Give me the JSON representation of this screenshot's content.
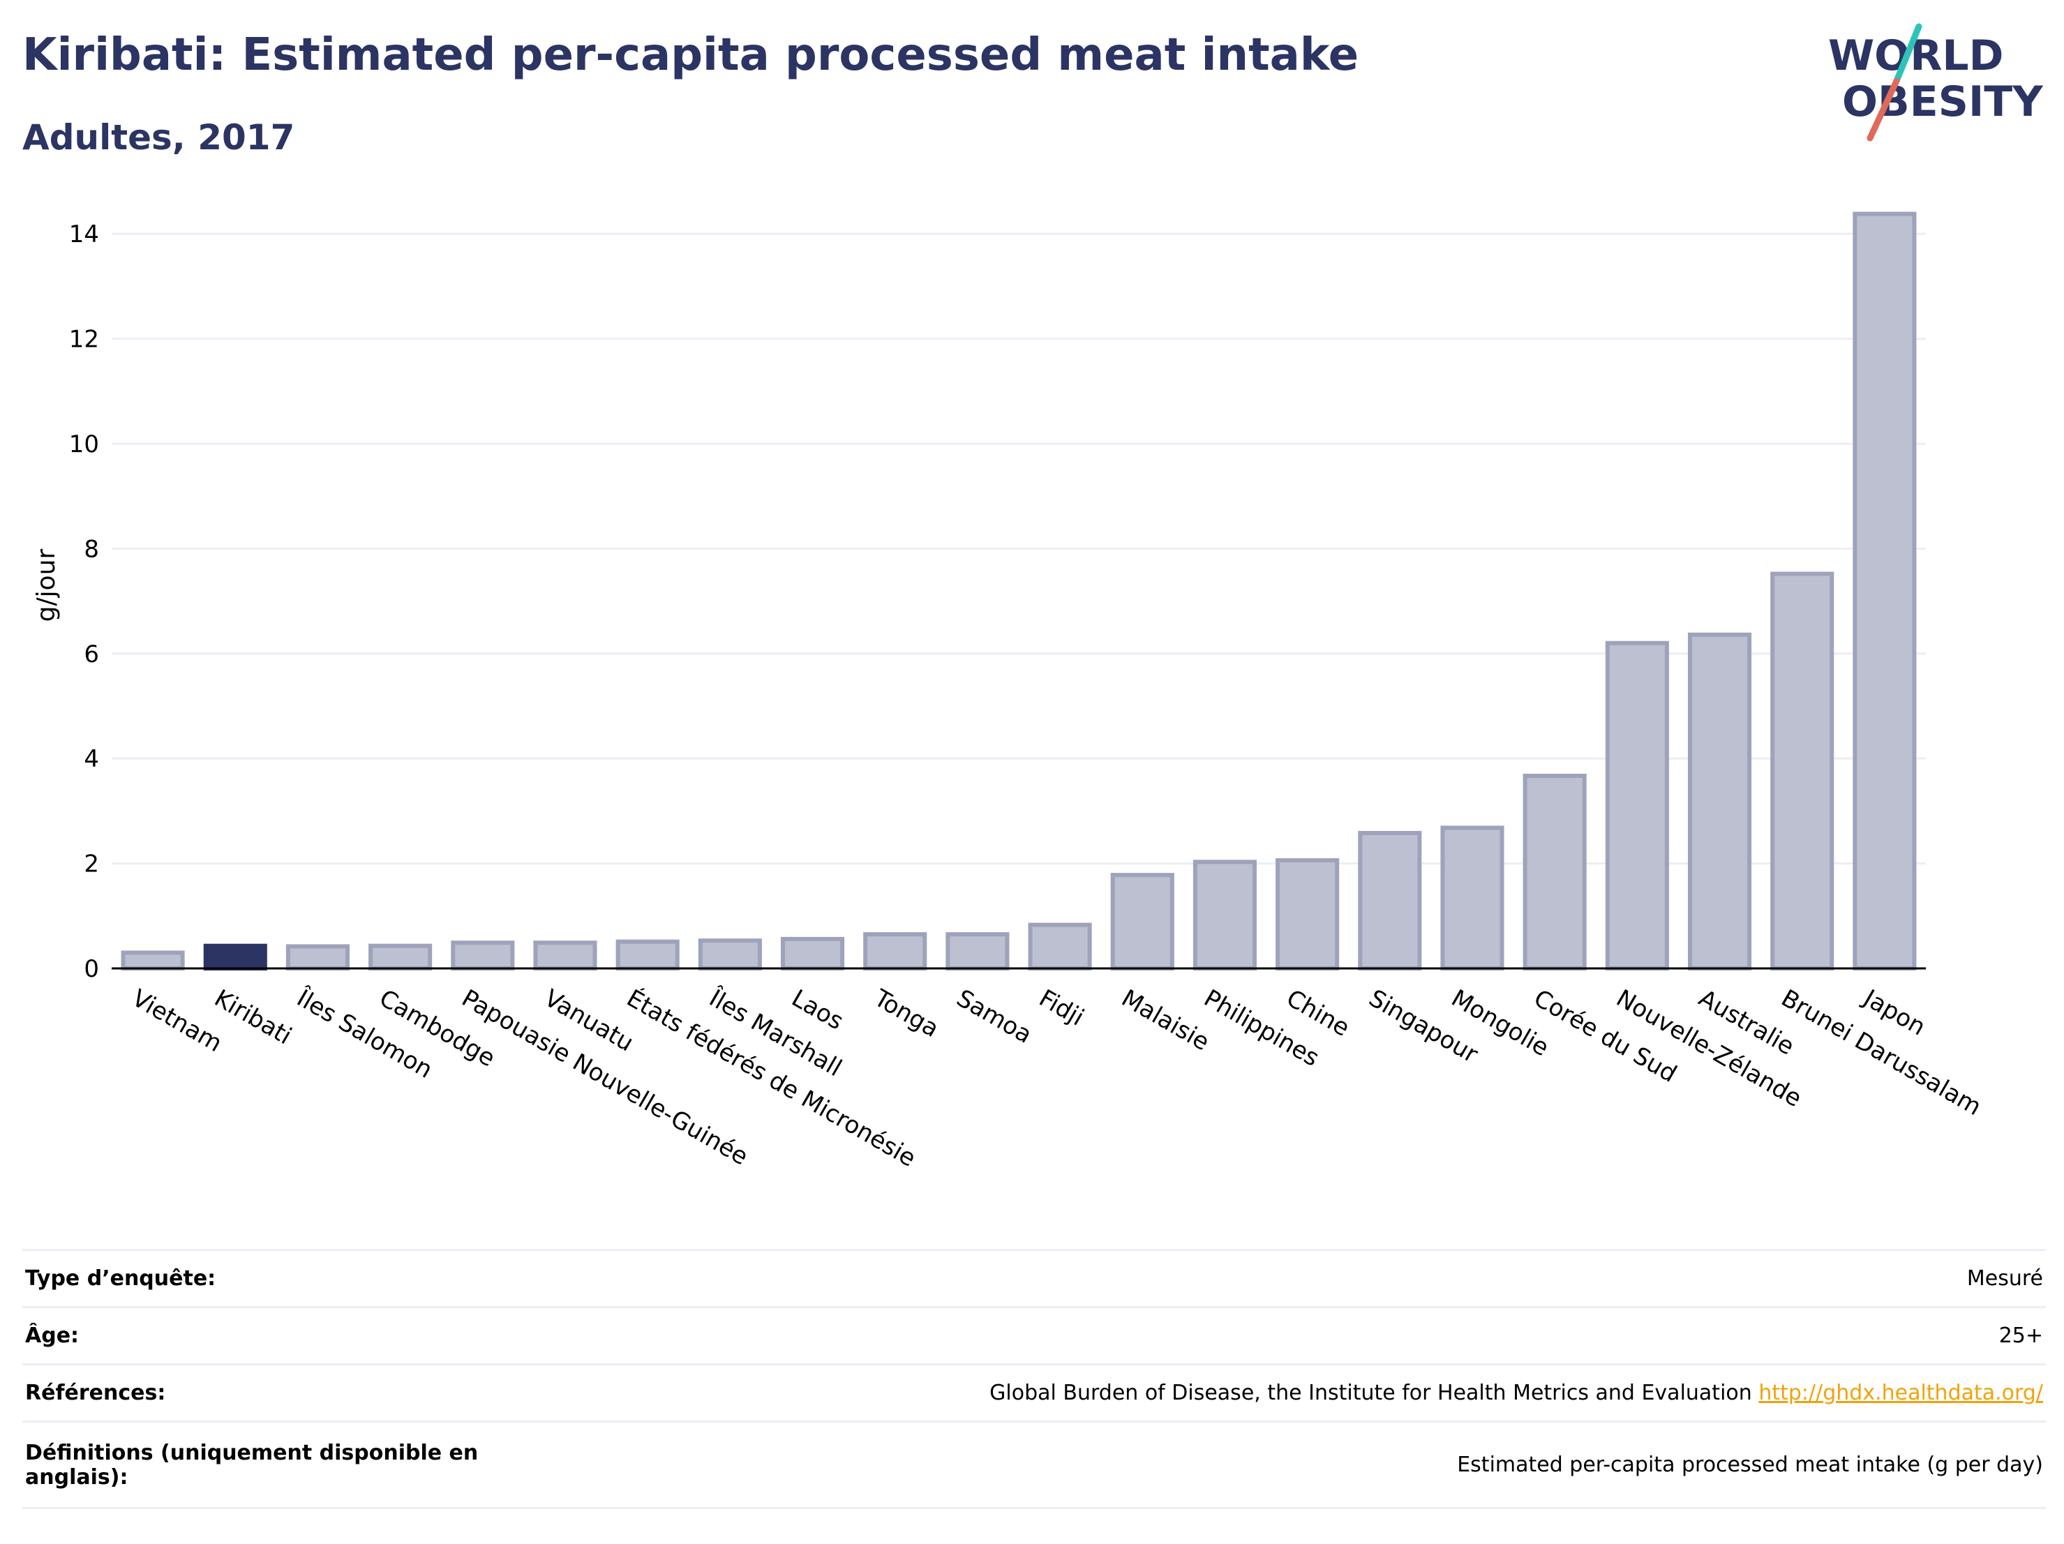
{
  "title": "Kiribati: Estimated per-capita processed meat intake",
  "subtitle": "Adultes, 2017",
  "logo": {
    "line1": "WORLD",
    "line2": "OBESITY",
    "slash_colors": [
      "#2cc4b8",
      "#e06a5a"
    ]
  },
  "colors": {
    "text": "#2b3463",
    "bar_default": "#bcc0d0",
    "bar_default_stroke": "#9ea3bb",
    "bar_highlight": "#2b3463",
    "gridline": "#eceef5",
    "link": "#f0a30a"
  },
  "chart_data": {
    "type": "bar",
    "ylabel": "g/jour",
    "xlabel": "",
    "ylim": [
      0,
      14.6
    ],
    "yticks": [
      0,
      2,
      4,
      6,
      8,
      10,
      12,
      14
    ],
    "grid": true,
    "highlight": "Kiribati",
    "categories": [
      "Vietnam",
      "Kiribati",
      "Îles Salomon",
      "Cambodge",
      "Papouasie Nouvelle-Guinée",
      "Vanuatu",
      "États fédérés de Micronésie",
      "Îles Marshall",
      "Laos",
      "Tonga",
      "Samoa",
      "Fidji",
      "Malaisie",
      "Philippines",
      "Chine",
      "Singapour",
      "Mongolie",
      "Corée du Sud",
      "Nouvelle-Zélande",
      "Australie",
      "Brunei Darussalam",
      "Japon"
    ],
    "values": [
      0.3,
      0.43,
      0.42,
      0.43,
      0.49,
      0.49,
      0.51,
      0.53,
      0.56,
      0.65,
      0.65,
      0.83,
      1.78,
      2.03,
      2.06,
      2.58,
      2.68,
      3.67,
      6.2,
      6.36,
      7.52,
      14.38
    ]
  },
  "info_table": [
    {
      "label": "Type d’enquête:",
      "value": "Mesuré"
    },
    {
      "label": "Âge:",
      "value": "25+"
    },
    {
      "label": "Références:",
      "value": "Global Burden of Disease, the Institute for Health Metrics and Evaluation",
      "link": "http://ghdx.healthdata.org/"
    },
    {
      "label": "Définitions (uniquement disponible en anglais):",
      "value": "Estimated per-capita processed meat intake (g per day)"
    }
  ]
}
